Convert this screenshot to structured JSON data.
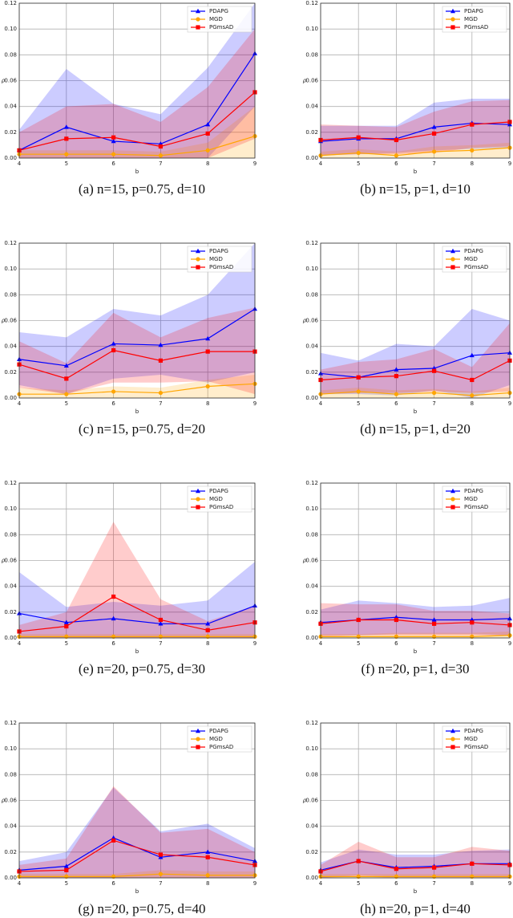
{
  "chart_data": [
    {
      "type": "line",
      "caption": "(a) n=15, p=0.75, d=10",
      "xlabel": "b",
      "ylabel": "ρ",
      "legend": "upper right",
      "grid": true,
      "x": [
        4,
        5,
        6,
        7,
        8,
        9
      ],
      "xlim": [
        4,
        9
      ],
      "xticks": [
        4,
        5,
        6,
        7,
        8,
        9
      ],
      "ylim": [
        0,
        0.12
      ],
      "yticks": [
        {
          "value": 0,
          "label": "0.00"
        },
        0.02,
        0.04,
        0.06,
        0.08,
        {
          "value": 0.1,
          "label": "0.10"
        },
        0.12
      ],
      "series": [
        {
          "name": "PDAPG",
          "color": "#0000ff",
          "marker": "triangle",
          "values": [
            0.006,
            0.024,
            0.013,
            0.011,
            0.026,
            0.081
          ],
          "lower": [
            0,
            0,
            0,
            0,
            0,
            0.04
          ],
          "upper": [
            0.022,
            0.069,
            0.042,
            0.034,
            0.07,
            0.12
          ]
        },
        {
          "name": "MGD",
          "color": "#ffa500",
          "marker": "circle",
          "values": [
            0.003,
            0.003,
            0.003,
            0.002,
            0.006,
            0.017
          ],
          "lower": [
            0,
            0,
            0,
            0,
            0,
            0
          ],
          "upper": [
            0.006,
            0.006,
            0.006,
            0.005,
            0.012,
            0.04
          ]
        },
        {
          "name": "PGmsAD",
          "color": "#ff0000",
          "marker": "square",
          "values": [
            0.006,
            0.015,
            0.016,
            0.009,
            0.019,
            0.051
          ],
          "lower": [
            0,
            0,
            0,
            0,
            0,
            0.015
          ],
          "upper": [
            0.02,
            0.04,
            0.042,
            0.028,
            0.055,
            0.1
          ]
        }
      ]
    },
    {
      "type": "line",
      "caption": "(b) n=15, p=1, d=10",
      "xlabel": "b",
      "ylabel": "ρ",
      "legend": "upper right",
      "grid": true,
      "x": [
        4,
        5,
        6,
        7,
        8,
        9
      ],
      "xlim": [
        4,
        9
      ],
      "xticks": [
        4,
        5,
        6,
        7,
        8,
        9
      ],
      "ylim": [
        0,
        0.12
      ],
      "yticks": [
        {
          "value": 0,
          "label": "0.00"
        },
        0.02,
        0.04,
        0.06,
        0.08,
        {
          "value": 0.1,
          "label": "0.10"
        },
        0.12
      ],
      "series": [
        {
          "name": "PDAPG",
          "color": "#0000ff",
          "marker": "triangle",
          "values": [
            0.013,
            0.015,
            0.015,
            0.024,
            0.027,
            0.026
          ],
          "lower": [
            0.002,
            0.003,
            0.004,
            0.006,
            0.007,
            0.008
          ],
          "upper": [
            0.025,
            0.025,
            0.025,
            0.043,
            0.046,
            0.046
          ]
        },
        {
          "name": "MGD",
          "color": "#ffa500",
          "marker": "circle",
          "values": [
            0.002,
            0.004,
            0.002,
            0.005,
            0.006,
            0.008
          ],
          "lower": [
            0,
            0,
            0,
            0,
            0,
            0
          ],
          "upper": [
            0.005,
            0.007,
            0.005,
            0.009,
            0.01,
            0.012
          ]
        },
        {
          "name": "PGmsAD",
          "color": "#ff0000",
          "marker": "square",
          "values": [
            0.014,
            0.016,
            0.014,
            0.019,
            0.026,
            0.028
          ],
          "lower": [
            0.002,
            0.003,
            0.003,
            0.004,
            0.008,
            0.009
          ],
          "upper": [
            0.026,
            0.025,
            0.024,
            0.036,
            0.044,
            0.045
          ]
        }
      ]
    },
    {
      "type": "line",
      "caption": "(c) n=15, p=0.75, d=20",
      "xlabel": "b",
      "ylabel": "ρ",
      "legend": "upper right",
      "grid": true,
      "x": [
        4,
        5,
        6,
        7,
        8,
        9
      ],
      "xlim": [
        4,
        9
      ],
      "xticks": [
        4,
        5,
        6,
        7,
        8,
        9
      ],
      "ylim": [
        0,
        0.12
      ],
      "yticks": [
        {
          "value": 0,
          "label": "0.00"
        },
        0.02,
        0.04,
        0.06,
        0.08,
        {
          "value": 0.1,
          "label": "0.10"
        },
        0.12
      ],
      "series": [
        {
          "name": "PDAPG",
          "color": "#0000ff",
          "marker": "triangle",
          "values": [
            0.03,
            0.025,
            0.042,
            0.041,
            0.046,
            0.069
          ],
          "lower": [
            0.01,
            0.003,
            0.015,
            0.018,
            0.012,
            0.02
          ],
          "upper": [
            0.051,
            0.047,
            0.069,
            0.064,
            0.08,
            0.12
          ]
        },
        {
          "name": "MGD",
          "color": "#ffa500",
          "marker": "circle",
          "values": [
            0.003,
            0.003,
            0.005,
            0.004,
            0.009,
            0.011
          ],
          "lower": [
            0,
            0,
            0,
            0,
            0,
            0
          ],
          "upper": [
            0.008,
            0.006,
            0.009,
            0.008,
            0.014,
            0.018
          ]
        },
        {
          "name": "PGmsAD",
          "color": "#ff0000",
          "marker": "square",
          "values": [
            0.026,
            0.015,
            0.037,
            0.029,
            0.036,
            0.036
          ],
          "lower": [
            0.008,
            0.003,
            0.012,
            0.012,
            0.013,
            0.003
          ],
          "upper": [
            0.044,
            0.027,
            0.066,
            0.047,
            0.062,
            0.07
          ]
        }
      ]
    },
    {
      "type": "line",
      "caption": "(d) n=15, p=1, d=20",
      "xlabel": "b",
      "ylabel": "ρ",
      "legend": "upper right",
      "grid": true,
      "x": [
        4,
        5,
        6,
        7,
        8,
        9
      ],
      "xlim": [
        4,
        9
      ],
      "xticks": [
        4,
        5,
        6,
        7,
        8,
        9
      ],
      "ylim": [
        0,
        0.12
      ],
      "yticks": [
        {
          "value": 0,
          "label": "0.00"
        },
        0.02,
        0.04,
        0.06,
        0.08,
        {
          "value": 0.1,
          "label": "0.10"
        },
        0.12
      ],
      "series": [
        {
          "name": "PDAPG",
          "color": "#0000ff",
          "marker": "triangle",
          "values": [
            0.019,
            0.016,
            0.022,
            0.023,
            0.033,
            0.035
          ],
          "lower": [
            0.003,
            0.003,
            0.002,
            0.006,
            0,
            0.01
          ],
          "upper": [
            0.035,
            0.029,
            0.042,
            0.04,
            0.069,
            0.06
          ]
        },
        {
          "name": "MGD",
          "color": "#ffa500",
          "marker": "circle",
          "values": [
            0.003,
            0.005,
            0.003,
            0.004,
            0.002,
            0.004
          ],
          "lower": [
            0,
            0,
            0,
            0,
            0,
            0
          ],
          "upper": [
            0.006,
            0.008,
            0.006,
            0.007,
            0.005,
            0.008
          ]
        },
        {
          "name": "PGmsAD",
          "color": "#ff0000",
          "marker": "square",
          "values": [
            0.014,
            0.016,
            0.017,
            0.021,
            0.014,
            0.029
          ],
          "lower": [
            0.003,
            0.004,
            0.004,
            0.005,
            0.004,
            0.005
          ],
          "upper": [
            0.022,
            0.028,
            0.03,
            0.038,
            0.024,
            0.058
          ]
        }
      ]
    },
    {
      "type": "line",
      "caption": "(e) n=20, p=0.75, d=30",
      "xlabel": "b",
      "ylabel": "ρ",
      "legend": "upper right",
      "grid": true,
      "x": [
        4,
        5,
        6,
        7,
        8,
        9
      ],
      "xlim": [
        4,
        9
      ],
      "xticks": [
        4,
        5,
        6,
        7,
        8,
        9
      ],
      "ylim": [
        0,
        0.12
      ],
      "yticks": [
        {
          "value": 0,
          "label": "0.00"
        },
        0.02,
        0.04,
        0.06,
        0.08,
        {
          "value": 0.1,
          "label": "0.10"
        },
        0.12
      ],
      "series": [
        {
          "name": "PDAPG",
          "color": "#0000ff",
          "marker": "triangle",
          "values": [
            0.019,
            0.012,
            0.015,
            0.011,
            0.011,
            0.025
          ],
          "lower": [
            0,
            0,
            0,
            0,
            0,
            0
          ],
          "upper": [
            0.051,
            0.024,
            0.028,
            0.025,
            0.029,
            0.059
          ]
        },
        {
          "name": "MGD",
          "color": "#ffa500",
          "marker": "circle",
          "values": [
            0.001,
            0.001,
            0.001,
            0.001,
            0.001,
            0.001
          ],
          "lower": [
            0,
            0,
            0,
            0,
            0,
            0
          ],
          "upper": [
            0.003,
            0.003,
            0.003,
            0.003,
            0.003,
            0.003
          ]
        },
        {
          "name": "PGmsAD",
          "color": "#ff0000",
          "marker": "square",
          "values": [
            0.005,
            0.009,
            0.032,
            0.014,
            0.006,
            0.012
          ],
          "lower": [
            0,
            0,
            0,
            0,
            0,
            0
          ],
          "upper": [
            0.01,
            0.02,
            0.09,
            0.03,
            0.013,
            0.025
          ]
        }
      ]
    },
    {
      "type": "line",
      "caption": "(f) n=20, p=1, d=30",
      "xlabel": "b",
      "ylabel": "ρ",
      "legend": "upper right",
      "grid": true,
      "x": [
        4,
        5,
        6,
        7,
        8,
        9
      ],
      "xlim": [
        4,
        9
      ],
      "xticks": [
        4,
        5,
        6,
        7,
        8,
        9
      ],
      "ylim": [
        0,
        0.12
      ],
      "yticks": [
        {
          "value": 0,
          "label": "0.00"
        },
        0.02,
        0.04,
        0.06,
        0.08,
        {
          "value": 0.1,
          "label": "0.10"
        },
        0.12
      ],
      "series": [
        {
          "name": "PDAPG",
          "color": "#0000ff",
          "marker": "triangle",
          "values": [
            0.012,
            0.014,
            0.016,
            0.014,
            0.014,
            0.015
          ],
          "lower": [
            0.002,
            0.002,
            0.003,
            0.003,
            0.003,
            0.002
          ],
          "upper": [
            0.022,
            0.029,
            0.027,
            0.024,
            0.025,
            0.031
          ]
        },
        {
          "name": "MGD",
          "color": "#ffa500",
          "marker": "circle",
          "values": [
            0.001,
            0.001,
            0.001,
            0.001,
            0.001,
            0.002
          ],
          "lower": [
            0,
            0,
            0,
            0,
            0,
            0
          ],
          "upper": [
            0.003,
            0.003,
            0.004,
            0.004,
            0.004,
            0.005
          ]
        },
        {
          "name": "PGmsAD",
          "color": "#ff0000",
          "marker": "square",
          "values": [
            0.011,
            0.014,
            0.014,
            0.011,
            0.012,
            0.01
          ],
          "lower": [
            0.001,
            0.002,
            0.002,
            0.002,
            0.002,
            0.002
          ],
          "upper": [
            0.027,
            0.026,
            0.026,
            0.021,
            0.021,
            0.019
          ]
        }
      ]
    },
    {
      "type": "line",
      "caption": "(g) n=20, p=0.75, d=40",
      "xlabel": "b",
      "ylabel": "ρ",
      "legend": "upper right",
      "grid": true,
      "x": [
        4,
        5,
        6,
        7,
        8,
        9
      ],
      "xlim": [
        4,
        9
      ],
      "xticks": [
        4,
        5,
        6,
        7,
        8,
        9
      ],
      "ylim": [
        0,
        0.12
      ],
      "yticks": [
        {
          "value": 0,
          "label": "0.00"
        },
        0.02,
        0.04,
        0.06,
        0.08,
        {
          "value": 0.1,
          "label": "0.10"
        },
        0.12
      ],
      "series": [
        {
          "name": "PDAPG",
          "color": "#0000ff",
          "marker": "triangle",
          "values": [
            0.006,
            0.009,
            0.031,
            0.016,
            0.02,
            0.013
          ],
          "lower": [
            0,
            0,
            0,
            0,
            0,
            0
          ],
          "upper": [
            0.013,
            0.02,
            0.07,
            0.036,
            0.042,
            0.023
          ]
        },
        {
          "name": "MGD",
          "color": "#ffa500",
          "marker": "circle",
          "values": [
            0.001,
            0.001,
            0.001,
            0.003,
            0.002,
            0.002
          ],
          "lower": [
            0,
            0,
            0,
            0,
            0,
            0
          ],
          "upper": [
            0.003,
            0.003,
            0.003,
            0.006,
            0.005,
            0.005
          ]
        },
        {
          "name": "PGmsAD",
          "color": "#ff0000",
          "marker": "square",
          "values": [
            0.005,
            0.006,
            0.029,
            0.018,
            0.016,
            0.01
          ],
          "lower": [
            0,
            0,
            0,
            0,
            0,
            0
          ],
          "upper": [
            0.01,
            0.015,
            0.071,
            0.035,
            0.038,
            0.02
          ]
        }
      ]
    },
    {
      "type": "line",
      "caption": "(h) n=20, p=1, d=40",
      "xlabel": "b",
      "ylabel": "ρ",
      "legend": "upper right",
      "grid": true,
      "x": [
        4,
        5,
        6,
        7,
        8,
        9
      ],
      "xlim": [
        4,
        9
      ],
      "xticks": [
        4,
        5,
        6,
        7,
        8,
        9
      ],
      "ylim": [
        0,
        0.12
      ],
      "yticks": [
        {
          "value": 0,
          "label": "0.00"
        },
        0.02,
        0.04,
        0.06,
        0.08,
        {
          "value": 0.1,
          "label": "0.10"
        },
        0.12
      ],
      "series": [
        {
          "name": "PDAPG",
          "color": "#0000ff",
          "marker": "triangle",
          "values": [
            0.006,
            0.013,
            0.008,
            0.009,
            0.011,
            0.011
          ],
          "lower": [
            0,
            0.002,
            0.001,
            0.001,
            0.001,
            0.001
          ],
          "upper": [
            0.012,
            0.022,
            0.018,
            0.018,
            0.021,
            0.022
          ]
        },
        {
          "name": "MGD",
          "color": "#ffa500",
          "marker": "circle",
          "values": [
            0.001,
            0.001,
            0.001,
            0.001,
            0.001,
            0.001
          ],
          "lower": [
            0,
            0,
            0,
            0,
            0,
            0
          ],
          "upper": [
            0.003,
            0.003,
            0.003,
            0.003,
            0.003,
            0.003
          ]
        },
        {
          "name": "PGmsAD",
          "color": "#ff0000",
          "marker": "square",
          "values": [
            0.005,
            0.013,
            0.007,
            0.008,
            0.011,
            0.01
          ],
          "lower": [
            0,
            0.001,
            0,
            0,
            0,
            0
          ],
          "upper": [
            0.01,
            0.028,
            0.016,
            0.016,
            0.024,
            0.021
          ]
        }
      ]
    }
  ]
}
